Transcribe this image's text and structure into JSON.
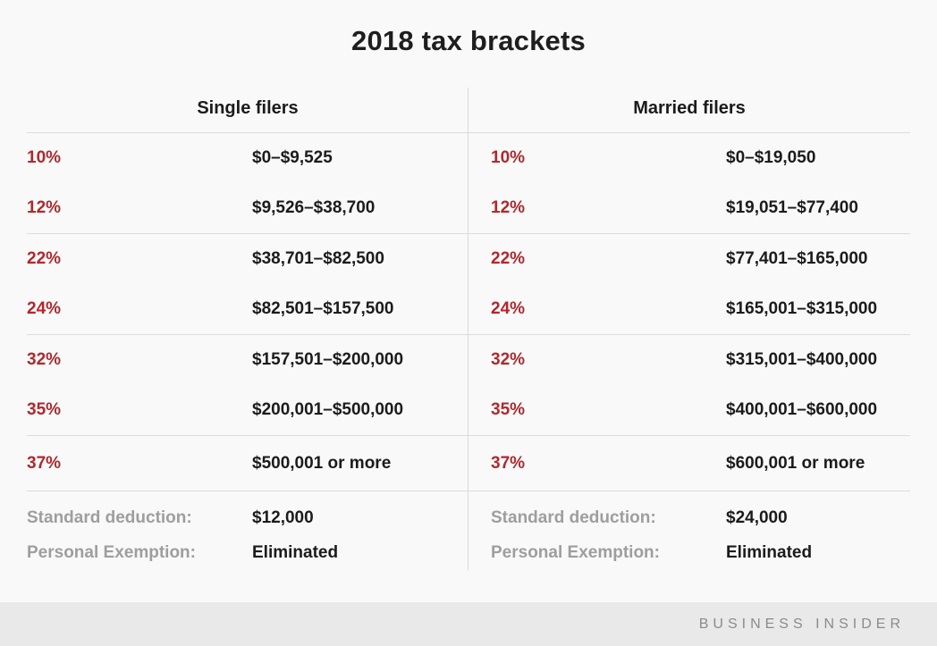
{
  "title": "2018 tax brackets",
  "branding": "BUSINESS INSIDER",
  "colors": {
    "rate_red": "#b0282e",
    "text_dark": "#1b1b1b",
    "label_gray": "#9e9e9e",
    "divider": "#dcdcdc",
    "page_bg": "#f9f9f9",
    "brand_bar_bg": "#e9e9e9",
    "brand_text": "#8b8b8b"
  },
  "chart_data": {
    "type": "table",
    "title": "2018 tax brackets",
    "columns": [
      {
        "header": "Single filers",
        "brackets": [
          {
            "rate": "10%",
            "range": "$0–$9,525"
          },
          {
            "rate": "12%",
            "range": "$9,526–$38,700"
          },
          {
            "rate": "22%",
            "range": "$38,701–$82,500"
          },
          {
            "rate": "24%",
            "range": "$82,501–$157,500"
          },
          {
            "rate": "32%",
            "range": "$157,501–$200,000"
          },
          {
            "rate": "35%",
            "range": "$200,001–$500,000"
          },
          {
            "rate": "37%",
            "range": "$500,001 or more"
          }
        ],
        "standard_deduction_label": "Standard deduction:",
        "standard_deduction": "$12,000",
        "personal_exemption_label": "Personal Exemption:",
        "personal_exemption": "Eliminated"
      },
      {
        "header": "Married filers",
        "brackets": [
          {
            "rate": "10%",
            "range": "$0–$19,050"
          },
          {
            "rate": "12%",
            "range": "$19,051–$77,400"
          },
          {
            "rate": "22%",
            "range": "$77,401–$165,000"
          },
          {
            "rate": "24%",
            "range": "$165,001–$315,000"
          },
          {
            "rate": "32%",
            "range": "$315,001–$400,000"
          },
          {
            "rate": "35%",
            "range": "$400,001–$600,000"
          },
          {
            "rate": "37%",
            "range": "$600,001 or more"
          }
        ],
        "standard_deduction_label": "Standard deduction:",
        "standard_deduction": "$24,000",
        "personal_exemption_label": "Personal Exemption:",
        "personal_exemption": "Eliminated"
      }
    ]
  }
}
